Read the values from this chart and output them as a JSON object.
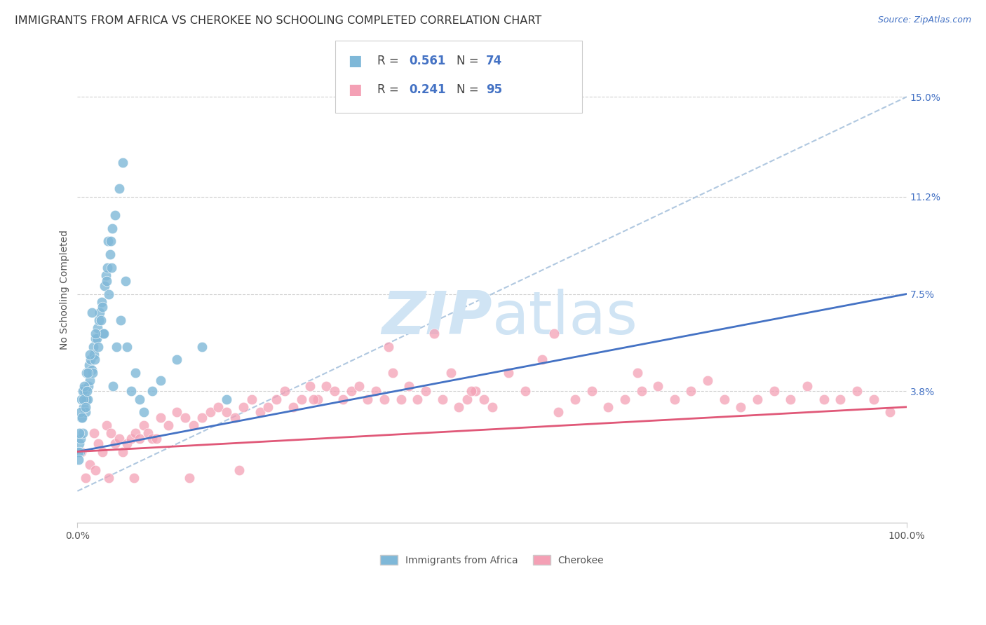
{
  "title": "IMMIGRANTS FROM AFRICA VS CHEROKEE NO SCHOOLING COMPLETED CORRELATION CHART",
  "source_text": "Source: ZipAtlas.com",
  "ylabel": "No Schooling Completed",
  "xlim": [
    0,
    100
  ],
  "ylim": [
    -1.2,
    16.5
  ],
  "ytick_vals": [
    3.8,
    7.5,
    11.2,
    15.0
  ],
  "ytick_labels": [
    "3.8%",
    "7.5%",
    "11.2%",
    "15.0%"
  ],
  "xtick_labels": [
    "0.0%",
    "100.0%"
  ],
  "xticks": [
    0,
    100
  ],
  "legend_R1": "0.561",
  "legend_N1": "74",
  "legend_R2": "0.241",
  "legend_N2": "95",
  "legend_label1": "Immigrants from Africa",
  "legend_label2": "Cherokee",
  "blue_color": "#7fb8d8",
  "pink_color": "#f4a0b5",
  "blue_line_color": "#4472c4",
  "pink_line_color": "#e05878",
  "ref_line_color": "#b0c8e0",
  "watermark_color": "#d0e4f4",
  "title_fontsize": 11.5,
  "axis_label_fontsize": 10,
  "tick_label_fontsize": 10,
  "legend_fontsize": 12,
  "blue_R": 0.561,
  "blue_N": 74,
  "pink_R": 0.241,
  "pink_N": 95,
  "blue_scatter_x": [
    0.2,
    0.3,
    0.4,
    0.5,
    0.6,
    0.7,
    0.8,
    0.9,
    1.0,
    1.1,
    1.2,
    1.3,
    1.4,
    1.5,
    1.6,
    1.7,
    1.8,
    1.9,
    2.0,
    2.1,
    2.2,
    2.3,
    2.4,
    2.5,
    2.6,
    2.7,
    2.8,
    2.9,
    3.0,
    3.1,
    3.2,
    3.3,
    3.4,
    3.5,
    3.6,
    3.7,
    3.8,
    3.9,
    4.0,
    4.1,
    4.2,
    4.3,
    4.5,
    4.7,
    5.0,
    5.2,
    5.5,
    5.8,
    6.0,
    6.5,
    7.0,
    7.5,
    8.0,
    9.0,
    10.0,
    12.0,
    15.0,
    18.0,
    0.1,
    0.15,
    0.25,
    0.35,
    0.45,
    0.55,
    0.65,
    0.75,
    0.85,
    0.95,
    1.05,
    1.15,
    1.25,
    1.45,
    1.75,
    2.15
  ],
  "blue_scatter_y": [
    1.8,
    1.5,
    2.0,
    2.8,
    2.2,
    3.2,
    3.9,
    3.8,
    3.0,
    3.5,
    3.5,
    4.0,
    4.8,
    4.2,
    5.0,
    4.6,
    4.5,
    5.5,
    5.2,
    5.0,
    5.8,
    5.8,
    6.2,
    5.5,
    6.5,
    6.8,
    6.5,
    7.2,
    7.0,
    6.0,
    6.0,
    7.8,
    8.2,
    8.0,
    8.5,
    9.5,
    7.5,
    9.0,
    9.5,
    8.5,
    10.0,
    4.0,
    10.5,
    5.5,
    11.5,
    6.5,
    12.5,
    8.0,
    5.5,
    3.8,
    4.5,
    3.5,
    3.0,
    3.8,
    4.2,
    5.0,
    5.5,
    3.5,
    1.5,
    1.2,
    2.2,
    3.0,
    3.5,
    2.8,
    3.8,
    3.5,
    4.0,
    3.2,
    4.5,
    3.8,
    4.5,
    5.2,
    6.8,
    6.0
  ],
  "pink_scatter_x": [
    0.5,
    1.0,
    1.5,
    2.0,
    2.5,
    3.0,
    3.5,
    4.0,
    4.5,
    5.0,
    5.5,
    6.0,
    6.5,
    7.0,
    7.5,
    8.0,
    8.5,
    9.0,
    10.0,
    11.0,
    12.0,
    13.0,
    14.0,
    15.0,
    16.0,
    17.0,
    18.0,
    19.0,
    20.0,
    21.0,
    22.0,
    23.0,
    24.0,
    25.0,
    26.0,
    27.0,
    28.0,
    29.0,
    30.0,
    31.0,
    32.0,
    33.0,
    34.0,
    35.0,
    36.0,
    37.0,
    38.0,
    39.0,
    40.0,
    41.0,
    42.0,
    43.0,
    44.0,
    45.0,
    46.0,
    47.0,
    48.0,
    49.0,
    50.0,
    52.0,
    54.0,
    56.0,
    58.0,
    60.0,
    62.0,
    64.0,
    66.0,
    68.0,
    70.0,
    72.0,
    74.0,
    76.0,
    78.0,
    80.0,
    82.0,
    84.0,
    86.0,
    88.0,
    90.0,
    92.0,
    94.0,
    96.0,
    98.0,
    2.2,
    3.8,
    6.8,
    9.5,
    13.5,
    19.5,
    28.5,
    37.5,
    47.5,
    57.5,
    67.5
  ],
  "pink_scatter_y": [
    1.5,
    0.5,
    1.0,
    2.2,
    1.8,
    1.5,
    2.5,
    2.2,
    1.8,
    2.0,
    1.5,
    1.8,
    2.0,
    2.2,
    2.0,
    2.5,
    2.2,
    2.0,
    2.8,
    2.5,
    3.0,
    2.8,
    2.5,
    2.8,
    3.0,
    3.2,
    3.0,
    2.8,
    3.2,
    3.5,
    3.0,
    3.2,
    3.5,
    3.8,
    3.2,
    3.5,
    4.0,
    3.5,
    4.0,
    3.8,
    3.5,
    3.8,
    4.0,
    3.5,
    3.8,
    3.5,
    4.5,
    3.5,
    4.0,
    3.5,
    3.8,
    6.0,
    3.5,
    4.5,
    3.2,
    3.5,
    3.8,
    3.5,
    3.2,
    4.5,
    3.8,
    5.0,
    3.0,
    3.5,
    3.8,
    3.2,
    3.5,
    3.8,
    4.0,
    3.5,
    3.8,
    4.2,
    3.5,
    3.2,
    3.5,
    3.8,
    3.5,
    4.0,
    3.5,
    3.5,
    3.8,
    3.5,
    3.0,
    0.8,
    0.5,
    0.5,
    2.0,
    0.5,
    0.8,
    3.5,
    5.5,
    3.8,
    6.0,
    4.5
  ],
  "blue_trend_x": [
    0,
    100
  ],
  "blue_trend_y": [
    1.5,
    7.5
  ],
  "pink_trend_x": [
    0,
    100
  ],
  "pink_trend_y": [
    1.5,
    3.2
  ],
  "ref_line_x": [
    0,
    100
  ],
  "ref_line_y": [
    0,
    15.0
  ]
}
